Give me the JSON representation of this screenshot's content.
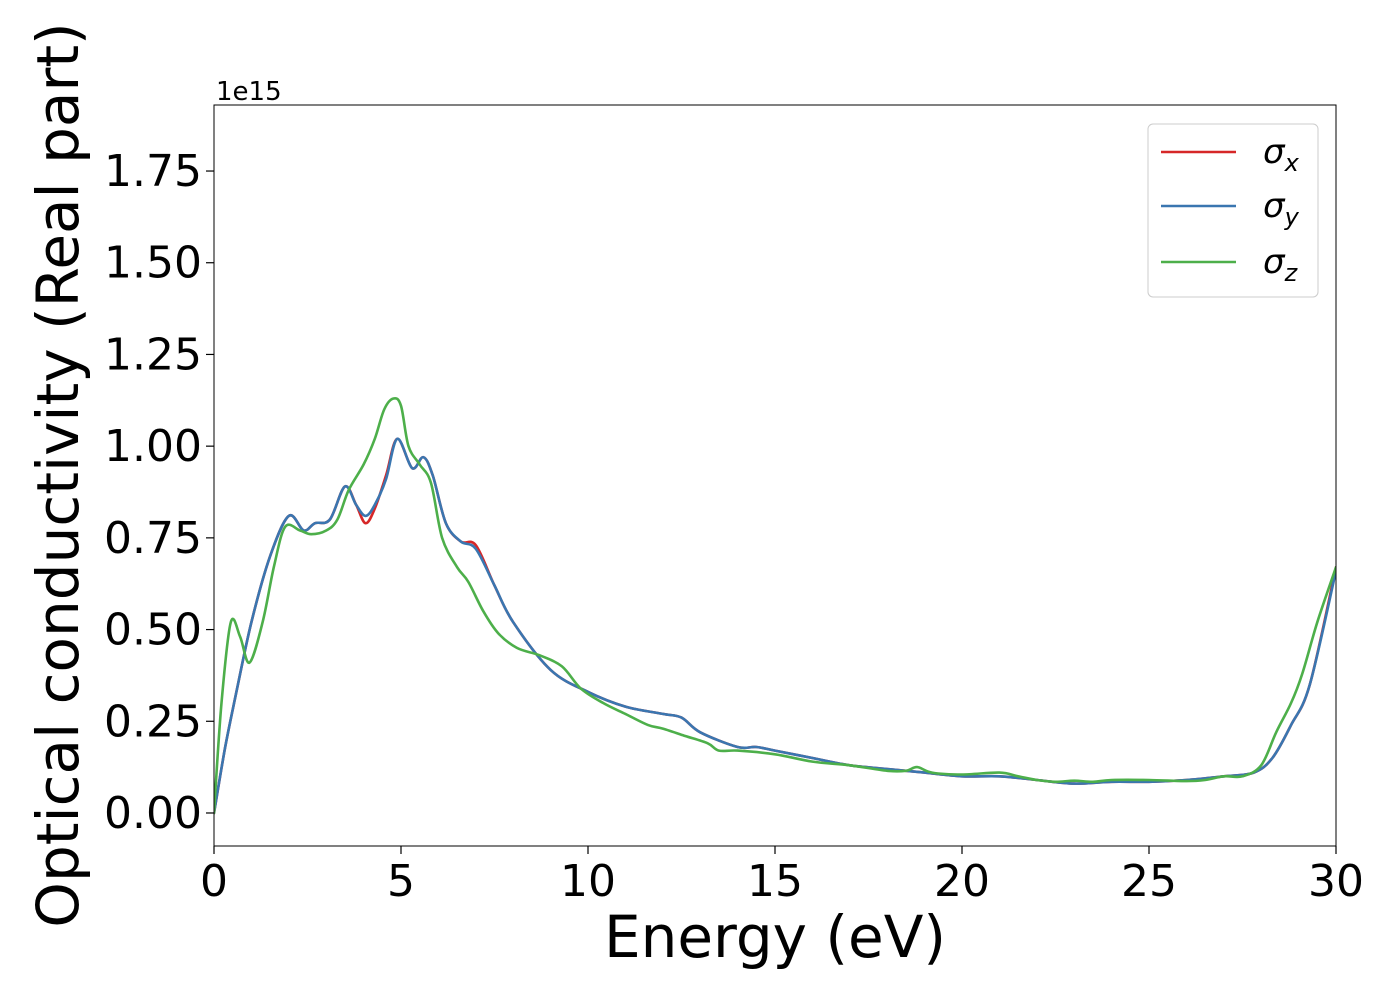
{
  "chart_data": {
    "type": "line",
    "title": "",
    "xlabel": "Energy (eV)",
    "ylabel": "Optical conductivity (Real part)",
    "y_offset_label": "1e15",
    "xlim": [
      0,
      30
    ],
    "ylim": [
      -0.09,
      1.93
    ],
    "x_ticks": [
      0,
      5,
      10,
      15,
      20,
      25,
      30
    ],
    "x_tick_labels": [
      "0",
      "5",
      "10",
      "15",
      "20",
      "25",
      "30"
    ],
    "y_ticks": [
      0.0,
      0.25,
      0.5,
      0.75,
      1.0,
      1.25,
      1.5,
      1.75
    ],
    "y_tick_labels": [
      "0.00",
      "0.25",
      "0.50",
      "0.75",
      "1.00",
      "1.25",
      "1.50",
      "1.75"
    ],
    "grid": false,
    "legend_position": "top-right",
    "series": [
      {
        "name": "σx",
        "legend_base": "σ",
        "legend_sub": "x",
        "color": "#d62728",
        "x": [
          0,
          0.3,
          0.6,
          1,
          1.5,
          2,
          2.4,
          2.7,
          3.1,
          3.5,
          3.8,
          4.05,
          4.3,
          4.6,
          4.9,
          5.3,
          5.6,
          5.85,
          6.2,
          6.6,
          7,
          7.5,
          8,
          9,
          10,
          11,
          12,
          12.5,
          13,
          14,
          14.5,
          15,
          16,
          17,
          18,
          19,
          20,
          21,
          22,
          23,
          24,
          25,
          26,
          27,
          27.8,
          28.3,
          28.8,
          29.3,
          30
        ],
        "y": [
          0.0,
          0.18,
          0.33,
          0.52,
          0.7,
          0.81,
          0.77,
          0.79,
          0.8,
          0.89,
          0.84,
          0.79,
          0.83,
          0.92,
          1.02,
          0.94,
          0.97,
          0.92,
          0.79,
          0.74,
          0.73,
          0.62,
          0.52,
          0.39,
          0.33,
          0.29,
          0.27,
          0.26,
          0.22,
          0.18,
          0.18,
          0.17,
          0.15,
          0.13,
          0.12,
          0.11,
          0.1,
          0.1,
          0.09,
          0.08,
          0.085,
          0.085,
          0.09,
          0.1,
          0.11,
          0.15,
          0.24,
          0.35,
          0.67
        ]
      },
      {
        "name": "σy",
        "legend_base": "σ",
        "legend_sub": "y",
        "color": "#3a76b0",
        "x": [
          0,
          0.3,
          0.6,
          1,
          1.5,
          2,
          2.4,
          2.7,
          3.1,
          3.5,
          3.8,
          4.05,
          4.3,
          4.6,
          4.9,
          5.3,
          5.6,
          5.85,
          6.2,
          6.6,
          7,
          7.5,
          8,
          9,
          10,
          11,
          12,
          12.5,
          13,
          14,
          14.5,
          15,
          16,
          17,
          18,
          19,
          20,
          21,
          22,
          23,
          24,
          25,
          26,
          27,
          27.8,
          28.3,
          28.8,
          29.3,
          30
        ],
        "y": [
          0.0,
          0.18,
          0.33,
          0.52,
          0.7,
          0.81,
          0.77,
          0.79,
          0.8,
          0.89,
          0.84,
          0.81,
          0.84,
          0.91,
          1.02,
          0.94,
          0.97,
          0.92,
          0.79,
          0.74,
          0.72,
          0.62,
          0.52,
          0.39,
          0.33,
          0.29,
          0.27,
          0.26,
          0.22,
          0.18,
          0.18,
          0.17,
          0.15,
          0.13,
          0.12,
          0.11,
          0.1,
          0.1,
          0.09,
          0.08,
          0.085,
          0.085,
          0.09,
          0.1,
          0.11,
          0.15,
          0.24,
          0.35,
          0.66
        ]
      },
      {
        "name": "σz",
        "legend_base": "σ",
        "legend_sub": "z",
        "color": "#4daf4a",
        "x": [
          0,
          0.2,
          0.45,
          0.7,
          0.95,
          1.3,
          1.6,
          1.9,
          2.3,
          2.6,
          3,
          3.3,
          3.6,
          4,
          4.3,
          4.55,
          4.8,
          5,
          5.2,
          5.5,
          5.8,
          6.1,
          6.5,
          6.8,
          7.2,
          7.6,
          8.1,
          8.7,
          9.3,
          9.8,
          10.4,
          11,
          11.6,
          12,
          12.6,
          13.2,
          13.5,
          14,
          15,
          16,
          17,
          18,
          18.5,
          18.8,
          19.2,
          20,
          21,
          21.5,
          22,
          22.5,
          23,
          23.5,
          24,
          25,
          26,
          26.5,
          27,
          27.5,
          28,
          28.4,
          28.8,
          29.1,
          29.5,
          30
        ],
        "y": [
          0.0,
          0.3,
          0.52,
          0.48,
          0.41,
          0.52,
          0.67,
          0.78,
          0.77,
          0.76,
          0.77,
          0.8,
          0.88,
          0.95,
          1.02,
          1.1,
          1.13,
          1.11,
          1.0,
          0.95,
          0.9,
          0.75,
          0.67,
          0.63,
          0.55,
          0.49,
          0.45,
          0.43,
          0.4,
          0.34,
          0.3,
          0.27,
          0.24,
          0.23,
          0.21,
          0.19,
          0.17,
          0.17,
          0.16,
          0.14,
          0.13,
          0.115,
          0.115,
          0.125,
          0.11,
          0.105,
          0.11,
          0.1,
          0.09,
          0.085,
          0.088,
          0.085,
          0.09,
          0.09,
          0.087,
          0.09,
          0.1,
          0.1,
          0.13,
          0.22,
          0.3,
          0.38,
          0.52,
          0.67
        ]
      }
    ]
  }
}
